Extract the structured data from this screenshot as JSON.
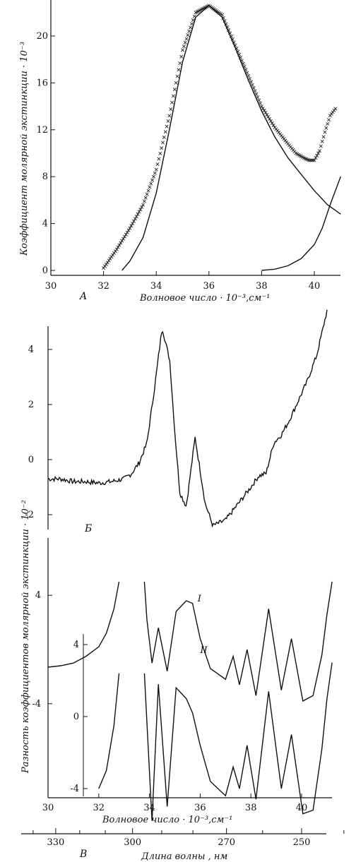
{
  "chart_data": [
    {
      "type": "line",
      "panel": "A",
      "xlabel": "Волновое число · 10⁻³,см⁻¹",
      "ylabel": "Коэффициент молярной экстинкции · 10⁻³",
      "xlim": [
        30,
        41
      ],
      "ylim": [
        0,
        24
      ],
      "x_ticks": [
        30,
        32,
        34,
        36,
        38,
        40
      ],
      "y_ticks": [
        0,
        4,
        8,
        12,
        16,
        20
      ],
      "series": [
        {
          "style": "crosses",
          "x": [
            32.0,
            32.5,
            33.0,
            33.5,
            34.0,
            34.5,
            35.0,
            35.5,
            36.0,
            36.5,
            37.0,
            37.5,
            38.0,
            38.5,
            39.0,
            39.3,
            39.6,
            39.8,
            40.0,
            40.2,
            40.4,
            40.6,
            40.8
          ],
          "y": [
            0.2,
            1.8,
            3.6,
            5.6,
            8.6,
            13.2,
            18.8,
            22.0,
            22.6,
            21.8,
            19.2,
            16.6,
            14.0,
            12.2,
            10.8,
            10.0,
            9.6,
            9.4,
            9.4,
            10.2,
            11.8,
            13.2,
            13.8
          ]
        },
        {
          "style": "solid",
          "x": [
            32.7,
            33.0,
            33.5,
            34.0,
            34.5,
            35.0,
            35.5,
            36.0,
            36.5,
            37.0,
            37.5,
            38.0,
            38.5,
            39.0,
            39.5,
            40.0,
            40.5,
            41.0
          ],
          "y": [
            0.0,
            0.8,
            2.8,
            6.6,
            12.0,
            17.8,
            21.6,
            22.6,
            21.6,
            19.0,
            16.2,
            13.6,
            11.4,
            9.6,
            8.2,
            6.8,
            5.6,
            4.8
          ]
        },
        {
          "style": "solid",
          "x": [
            38.0,
            38.5,
            39.0,
            39.5,
            40.0,
            40.3,
            40.6,
            41.0
          ],
          "y": [
            0.0,
            0.1,
            0.4,
            1.0,
            2.2,
            3.6,
            5.6,
            8.0
          ]
        }
      ]
    },
    {
      "type": "line",
      "panel": "Б",
      "xlim": [
        30,
        41
      ],
      "ylim": [
        -3,
        5.6
      ],
      "y_ticks": [
        4,
        2,
        0,
        -2
      ],
      "y_tick_labels": [
        "4",
        "2",
        "0",
        "-2"
      ],
      "series": [
        {
          "x": [
            30.0,
            30.5,
            31.0,
            31.5,
            32.0,
            32.5,
            33.0,
            33.3,
            33.6,
            33.9,
            34.2,
            34.5,
            34.8,
            35.0,
            35.2,
            35.45,
            35.8,
            36.0,
            36.2,
            36.5,
            37.0,
            37.5,
            38.0,
            38.3,
            38.6,
            38.9,
            39.2,
            39.5,
            39.8,
            40.2,
            40.6,
            41.0
          ],
          "y": [
            -0.7,
            -0.7,
            -0.8,
            -0.8,
            -0.85,
            -0.8,
            -0.7,
            -0.5,
            -0.1,
            0.6,
            2.6,
            4.8,
            3.6,
            1.0,
            -1.2,
            -1.7,
            0.8,
            -0.4,
            -1.6,
            -2.4,
            -2.2,
            -1.6,
            -1.0,
            -0.6,
            -0.5,
            0.6,
            0.9,
            1.4,
            2.0,
            2.8,
            3.8,
            5.4
          ]
        }
      ]
    },
    {
      "type": "line",
      "panel": "В",
      "xlabel": "Волновое число · 10⁻³,см⁻¹",
      "ylabel": "Разность коэффициентов молярной экстинкции · 10⁻²",
      "xlim": [
        30,
        41.3
      ],
      "x_ticks": [
        30,
        32,
        34,
        36,
        38,
        40
      ],
      "y_ticks_outer": [
        4,
        -4
      ],
      "y_tick_labels_outer": [
        "4",
        "-4"
      ],
      "y_ticks_inner": [
        4,
        0,
        -4
      ],
      "y_tick_labels_inner": [
        "4",
        "0",
        "-4"
      ],
      "series": [
        {
          "name": "I",
          "x": [
            30.0,
            30.5,
            31.0,
            31.5,
            32.0,
            32.3,
            32.6,
            32.8,
            33.8,
            33.9,
            34.1,
            34.35,
            34.7,
            35.05,
            35.45,
            35.7,
            36.0,
            36.4,
            37.0,
            37.3,
            37.55,
            37.85,
            38.2,
            38.7,
            39.2,
            39.6,
            40.05,
            40.45,
            40.8,
            41.0,
            41.2
          ],
          "y": [
            -1.3,
            -1.2,
            -1.0,
            -0.5,
            0.2,
            1.2,
            3.0,
            5.0,
            5.0,
            2.2,
            -1.0,
            1.6,
            -1.6,
            2.8,
            3.6,
            3.4,
            0.8,
            -1.4,
            -2.2,
            -0.5,
            -2.6,
            0.0,
            -3.4,
            3.0,
            -3.0,
            0.8,
            -3.8,
            -3.4,
            -0.4,
            2.6,
            5.0
          ]
        },
        {
          "name": "II",
          "x": [
            32.0,
            32.3,
            32.6,
            32.8,
            33.8,
            34.1,
            34.35,
            34.7,
            35.05,
            35.45,
            35.7,
            36.0,
            36.4,
            37.0,
            37.3,
            37.55,
            37.85,
            38.2,
            38.7,
            39.2,
            39.6,
            40.05,
            40.45,
            40.8,
            41.0,
            41.2
          ],
          "y": [
            -4.0,
            -3.0,
            -0.5,
            2.4,
            2.4,
            -5.8,
            1.8,
            -5.0,
            1.6,
            1.0,
            0.2,
            -1.6,
            -3.6,
            -4.4,
            -2.8,
            -4.0,
            -1.6,
            -4.6,
            1.4,
            -4.0,
            -1.0,
            -5.4,
            -5.2,
            -1.8,
            1.0,
            3.0
          ]
        }
      ],
      "curve_labels": [
        "I",
        "II"
      ],
      "secondary_axis": {
        "label": "Длина волны , нм",
        "ticks": [
          330,
          300,
          270,
          250
        ],
        "tick_labels": [
          "330",
          "300",
          "270",
          "250"
        ]
      }
    }
  ]
}
